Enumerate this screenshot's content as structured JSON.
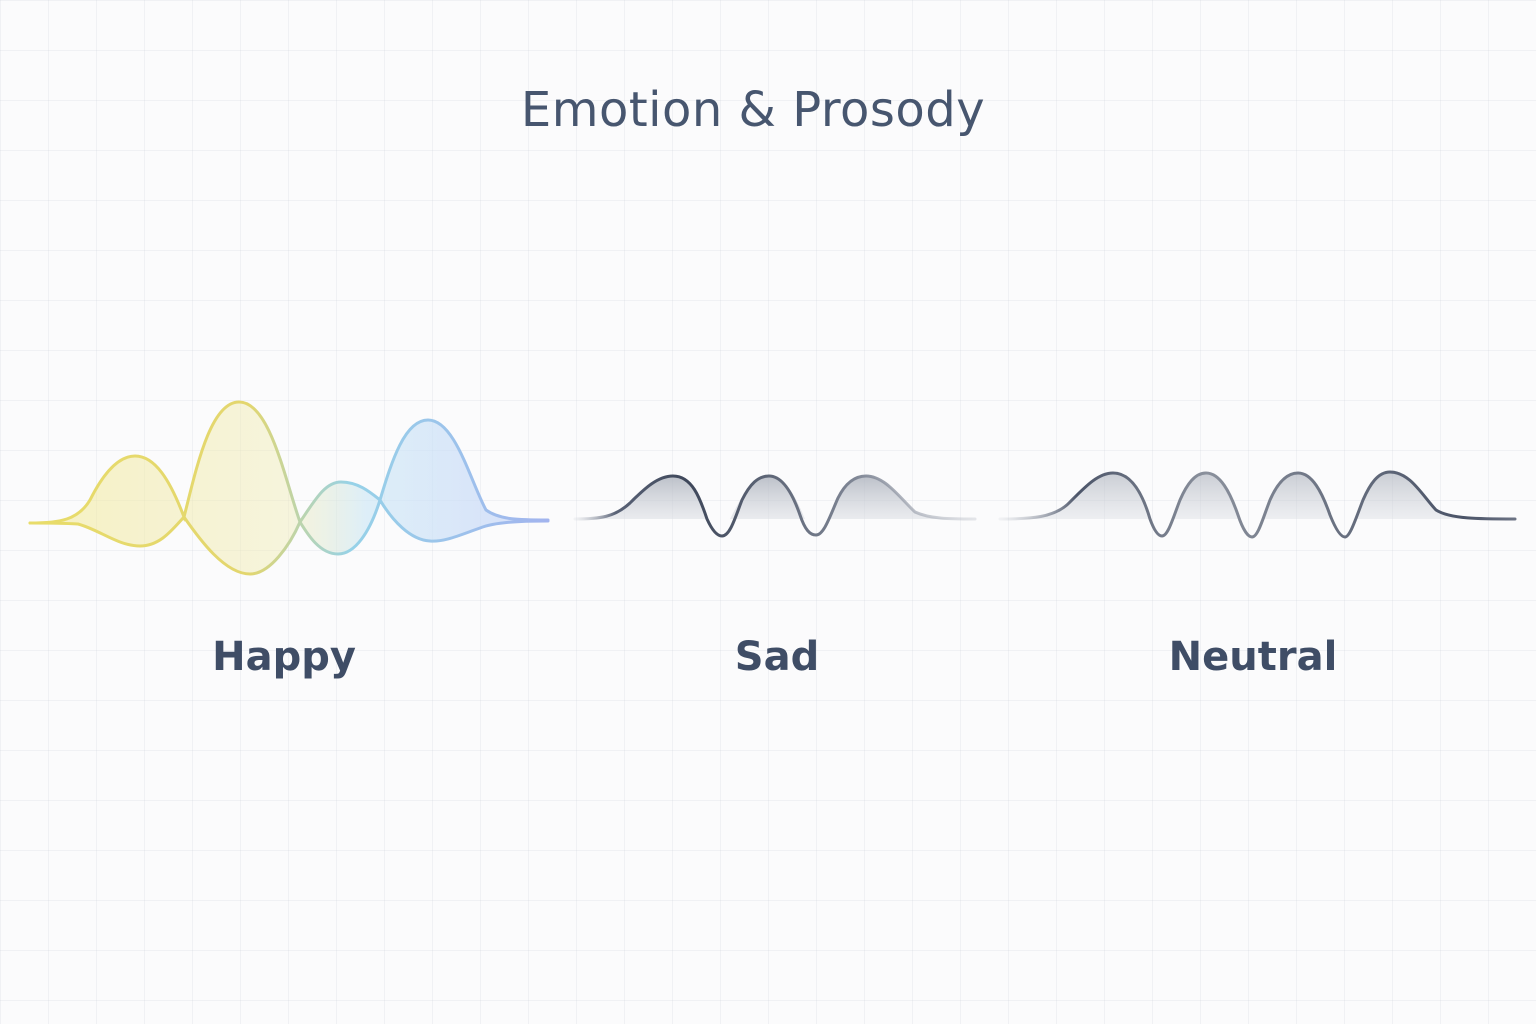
{
  "title": "Emotion & Prosody",
  "emotions": [
    {
      "label": "Happy",
      "colors": [
        "#e8dc6a",
        "#8fd0ea",
        "#9fb2ee"
      ]
    },
    {
      "label": "Sad",
      "colors": [
        "#454f63",
        "#8a909c"
      ]
    },
    {
      "label": "Neutral",
      "colors": [
        "#4c5569",
        "#8c929e"
      ]
    }
  ]
}
